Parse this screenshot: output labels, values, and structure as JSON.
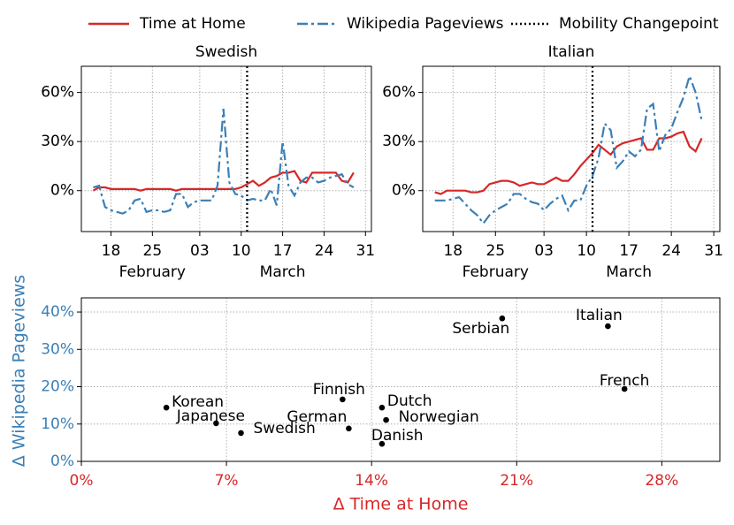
{
  "chart_data": [
    {
      "type": "line",
      "title": "Swedish",
      "x": [
        15,
        16,
        17,
        18,
        19,
        20,
        21,
        22,
        23,
        24,
        25,
        26,
        27,
        28,
        29,
        30,
        31,
        32,
        33,
        34,
        35,
        36,
        37,
        38,
        39,
        40,
        41,
        42,
        43,
        44,
        45,
        46,
        47,
        48,
        49,
        50,
        51,
        52,
        53,
        54,
        55,
        56,
        57,
        58,
        59
      ],
      "series": [
        {
          "name": "Time at Home",
          "color": "#d62728",
          "dash": "solid",
          "values": [
            0,
            2,
            2,
            1,
            1,
            1,
            1,
            1,
            0,
            1,
            1,
            1,
            1,
            1,
            0,
            1,
            1,
            1,
            1,
            1,
            1,
            1,
            1,
            1,
            1,
            2,
            4,
            6,
            3,
            5,
            8,
            9,
            11,
            11,
            12,
            6,
            5,
            11,
            11,
            11,
            11,
            11,
            6,
            5,
            11
          ]
        },
        {
          "name": "Wikipedia Pageviews",
          "color": "#3b7fb6",
          "dash": "dashdot",
          "values": [
            2,
            3,
            -10,
            -12,
            -13,
            -14,
            -12,
            -6,
            -5,
            -13,
            -12,
            -12,
            -13,
            -12,
            -2,
            -2,
            -10,
            -7,
            -6,
            -6,
            -6,
            3,
            50,
            5,
            -2,
            -3,
            -6,
            -5,
            -6,
            -6,
            1,
            -9,
            30,
            3,
            -3,
            5,
            8,
            8,
            5,
            6,
            8,
            9,
            10,
            4,
            2
          ]
        }
      ],
      "changepoint": {
        "name": "Mobility Changepoint",
        "x": 41,
        "color": "#000000"
      },
      "xlim": [
        13,
        62
      ],
      "xticks": [
        {
          "value": 18,
          "label": "18"
        },
        {
          "value": 25,
          "label": "25"
        },
        {
          "value": 33,
          "label": "03"
        },
        {
          "value": 40,
          "label": "10"
        },
        {
          "value": 47,
          "label": "17"
        },
        {
          "value": 54,
          "label": "24"
        },
        {
          "value": 61,
          "label": "31"
        }
      ],
      "month_ticks": [
        {
          "value": 25,
          "label": "February"
        },
        {
          "value": 47,
          "label": "March"
        }
      ],
      "ylim": [
        -25,
        76
      ],
      "yticks": [
        {
          "value": 0,
          "label": "0%"
        },
        {
          "value": 30,
          "label": "30%"
        },
        {
          "value": 60,
          "label": "60%"
        }
      ],
      "grid": true
    },
    {
      "type": "line",
      "title": "Italian",
      "x": [
        15,
        16,
        17,
        18,
        19,
        20,
        21,
        22,
        23,
        24,
        25,
        26,
        27,
        28,
        29,
        30,
        31,
        32,
        33,
        34,
        35,
        36,
        37,
        38,
        39,
        40,
        41,
        42,
        43,
        44,
        45,
        46,
        47,
        48,
        49,
        50,
        51,
        52,
        53,
        54,
        55,
        56,
        57,
        58,
        59
      ],
      "series": [
        {
          "name": "Time at Home",
          "color": "#d62728",
          "dash": "solid",
          "values": [
            -1,
            -2,
            0,
            0,
            0,
            0,
            -1,
            -1,
            0,
            4,
            5,
            6,
            6,
            5,
            3,
            4,
            5,
            4,
            4,
            6,
            8,
            6,
            6,
            10,
            15,
            19,
            23,
            28,
            25,
            22,
            27,
            29,
            30,
            31,
            32,
            25,
            25,
            32,
            32,
            33,
            35,
            36,
            27,
            24,
            32
          ]
        },
        {
          "name": "Wikipedia Pageviews",
          "color": "#3b7fb6",
          "dash": "dashdot",
          "values": [
            -6,
            -6,
            -6,
            -5,
            -4,
            -8,
            -12,
            -15,
            -20,
            -15,
            -12,
            -10,
            -8,
            -2,
            -2,
            -5,
            -7,
            -8,
            -12,
            -8,
            -5,
            -3,
            -12,
            -6,
            -6,
            3,
            9,
            20,
            41,
            37,
            14,
            18,
            24,
            21,
            25,
            50,
            53,
            24,
            34,
            38,
            48,
            57,
            70,
            60,
            43
          ]
        }
      ],
      "changepoint": {
        "x": 41,
        "color": "#000000"
      },
      "xlim": [
        13,
        62
      ],
      "xticks": [
        {
          "value": 18,
          "label": "18"
        },
        {
          "value": 25,
          "label": "25"
        },
        {
          "value": 33,
          "label": "03"
        },
        {
          "value": 40,
          "label": "10"
        },
        {
          "value": 47,
          "label": "17"
        },
        {
          "value": 54,
          "label": "24"
        },
        {
          "value": 61,
          "label": "31"
        }
      ],
      "month_ticks": [
        {
          "value": 25,
          "label": "February"
        },
        {
          "value": 47,
          "label": "March"
        }
      ],
      "ylim": [
        -25,
        76
      ],
      "yticks": [
        {
          "value": 0,
          "label": "0%"
        },
        {
          "value": 30,
          "label": "30%"
        },
        {
          "value": 60,
          "label": "60%"
        }
      ],
      "grid": true
    },
    {
      "type": "scatter",
      "labels": [
        "Korean",
        "Japanese",
        "Swedish",
        "Finnish",
        "German",
        "Dutch",
        "Norwegian",
        "Danish",
        "Serbian",
        "Italian",
        "French"
      ],
      "x": [
        4.1,
        6.5,
        7.7,
        12.6,
        12.9,
        14.5,
        14.7,
        14.5,
        20.3,
        25.4,
        26.2
      ],
      "y": [
        14.4,
        10.2,
        7.6,
        16.6,
        8.8,
        14.4,
        11.1,
        4.7,
        38.3,
        36.2,
        19.4
      ],
      "color": "#000000",
      "xlabel": "Δ Time at Home",
      "xlabel_color": "#d62728",
      "ylabel": "Δ Wikipedia Pageviews",
      "ylabel_color": "#3b7fb6",
      "xlim": [
        0,
        30.8
      ],
      "xticks": [
        {
          "value": 0,
          "label": "0%"
        },
        {
          "value": 7,
          "label": "7%"
        },
        {
          "value": 14,
          "label": "14%"
        },
        {
          "value": 21,
          "label": "21%"
        },
        {
          "value": 28,
          "label": "28%"
        }
      ],
      "ylim": [
        0,
        43.8
      ],
      "yticks": [
        {
          "value": 0,
          "label": "0%"
        },
        {
          "value": 10,
          "label": "10%"
        },
        {
          "value": 20,
          "label": "20%"
        },
        {
          "value": 30,
          "label": "30%"
        },
        {
          "value": 40,
          "label": "40%"
        }
      ],
      "grid": true
    }
  ]
}
